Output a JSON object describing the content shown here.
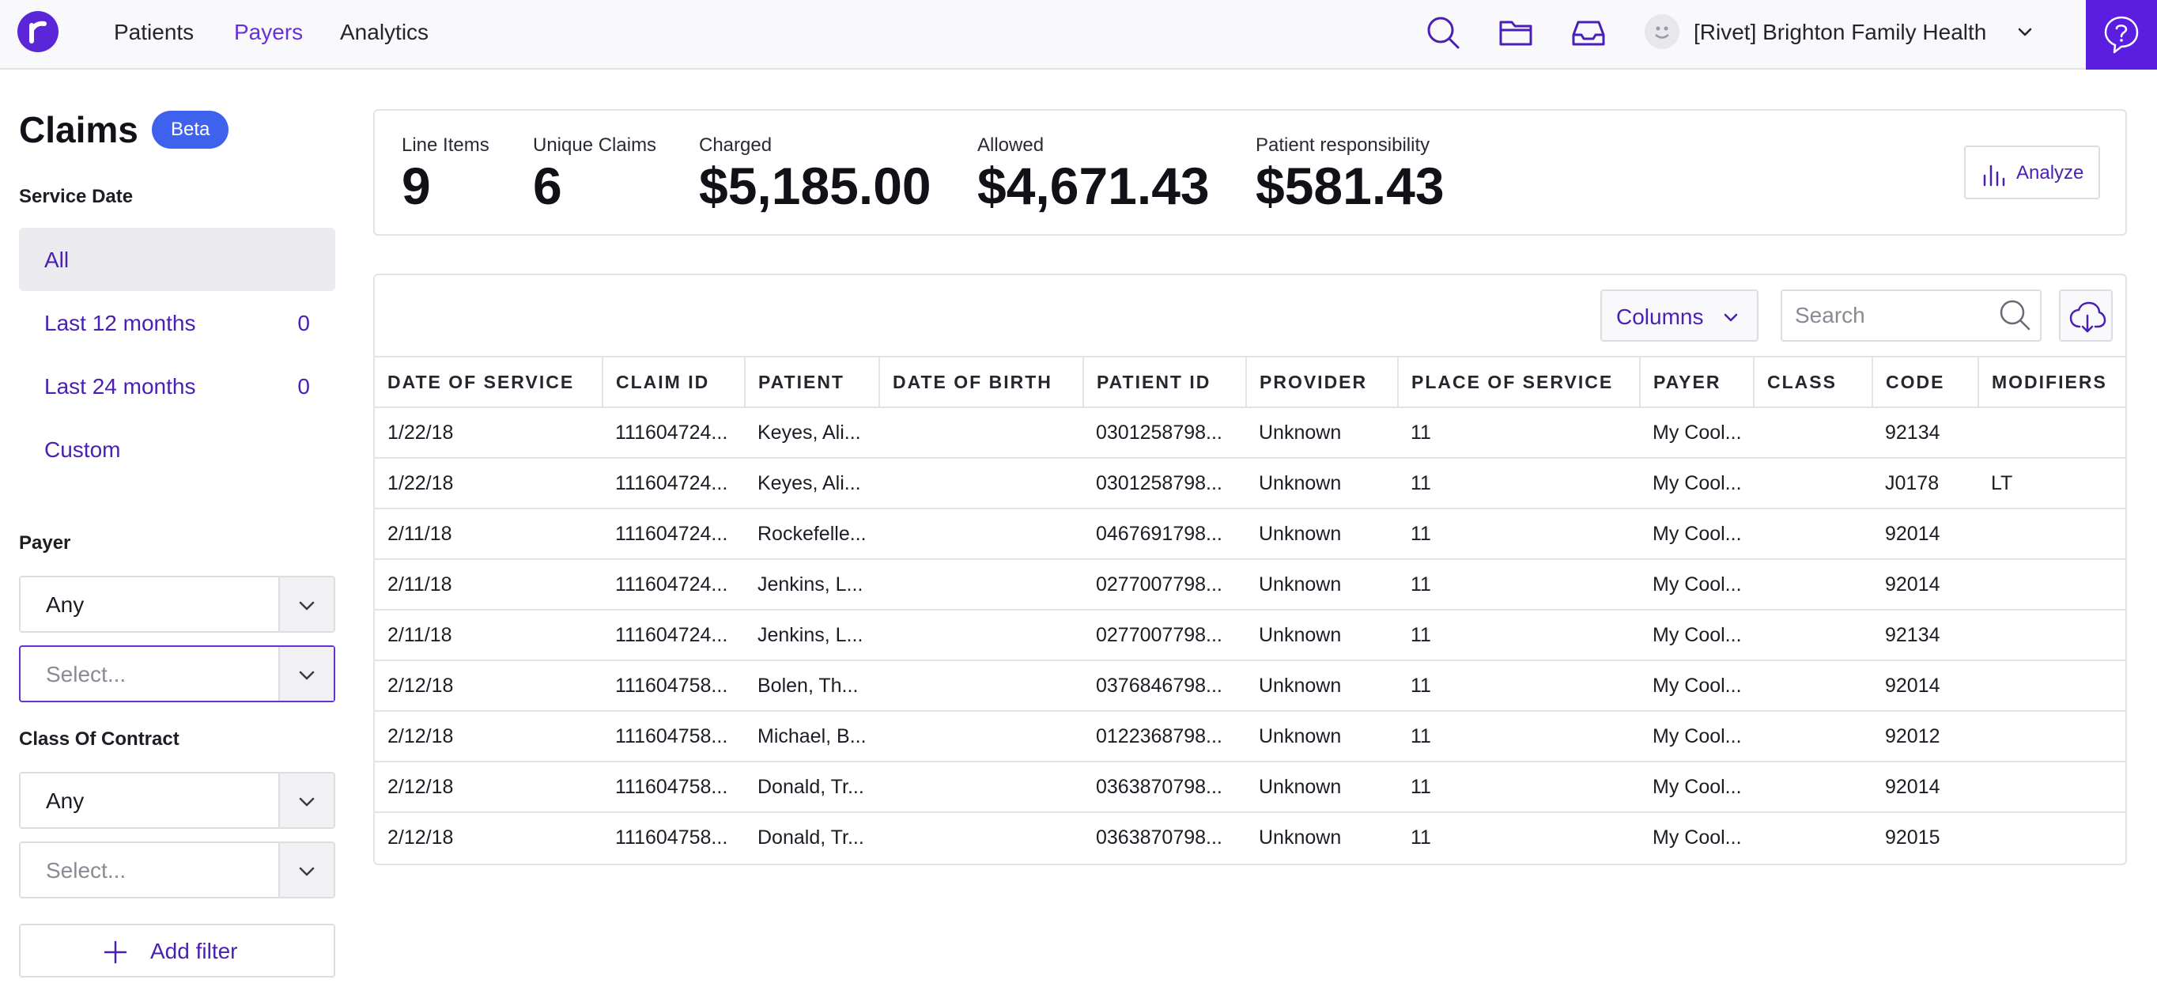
{
  "nav": {
    "links": [
      "Patients",
      "Payers",
      "Analytics"
    ],
    "active": "Payers",
    "org_name": "[Rivet] Brighton Family Health",
    "accent": "#5b1ee0"
  },
  "sidebar": {
    "title": "Claims",
    "badge": "Beta",
    "service_date": {
      "label": "Service Date",
      "options": [
        {
          "label": "All",
          "count": "",
          "selected": true
        },
        {
          "label": "Last 12 months",
          "count": "0"
        },
        {
          "label": "Last 24 months",
          "count": "0"
        },
        {
          "label": "Custom",
          "count": ""
        }
      ]
    },
    "payer": {
      "label": "Payer",
      "match": "Any",
      "placeholder": "Select..."
    },
    "class_of_contract": {
      "label": "Class Of Contract",
      "match": "Any",
      "placeholder": "Select..."
    },
    "add_filter": "Add filter"
  },
  "stats": [
    {
      "label": "Line Items",
      "value": "9"
    },
    {
      "label": "Unique Claims",
      "value": "6"
    },
    {
      "label": "Charged",
      "value": "$5,185.00"
    },
    {
      "label": "Allowed",
      "value": "$4,671.43"
    },
    {
      "label": "Patient responsibility",
      "value": "$581.43"
    }
  ],
  "analyze_label": "Analyze",
  "table": {
    "columns_label": "Columns",
    "search_placeholder": "Search",
    "headers": [
      "DATE OF SERVICE",
      "CLAIM ID",
      "PATIENT",
      "DATE OF BIRTH",
      "PATIENT ID",
      "PROVIDER",
      "PLACE OF SERVICE",
      "PAYER",
      "CLASS",
      "CODE",
      "MODIFIERS"
    ],
    "rows": [
      [
        "1/22/18",
        "111604724...",
        "Keyes, Ali...",
        "",
        "0301258798...",
        "Unknown",
        "11",
        "My Cool...",
        "",
        "92134",
        ""
      ],
      [
        "1/22/18",
        "111604724...",
        "Keyes, Ali...",
        "",
        "0301258798...",
        "Unknown",
        "11",
        "My Cool...",
        "",
        "J0178",
        "LT"
      ],
      [
        "2/11/18",
        "111604724...",
        "Rockefelle...",
        "",
        "0467691798...",
        "Unknown",
        "11",
        "My Cool...",
        "",
        "92014",
        ""
      ],
      [
        "2/11/18",
        "111604724...",
        "Jenkins, L...",
        "",
        "0277007798...",
        "Unknown",
        "11",
        "My Cool...",
        "",
        "92014",
        ""
      ],
      [
        "2/11/18",
        "111604724...",
        "Jenkins, L...",
        "",
        "0277007798...",
        "Unknown",
        "11",
        "My Cool...",
        "",
        "92134",
        ""
      ],
      [
        "2/12/18",
        "111604758...",
        "Bolen, Th...",
        "",
        "0376846798...",
        "Unknown",
        "11",
        "My Cool...",
        "",
        "92014",
        ""
      ],
      [
        "2/12/18",
        "111604758...",
        "Michael, B...",
        "",
        "0122368798...",
        "Unknown",
        "11",
        "My Cool...",
        "",
        "92012",
        ""
      ],
      [
        "2/12/18",
        "111604758...",
        "Donald, Tr...",
        "",
        "0363870798...",
        "Unknown",
        "11",
        "My Cool...",
        "",
        "92014",
        ""
      ],
      [
        "2/12/18",
        "111604758...",
        "Donald, Tr...",
        "",
        "0363870798...",
        "Unknown",
        "11",
        "My Cool...",
        "",
        "92015",
        ""
      ]
    ]
  }
}
